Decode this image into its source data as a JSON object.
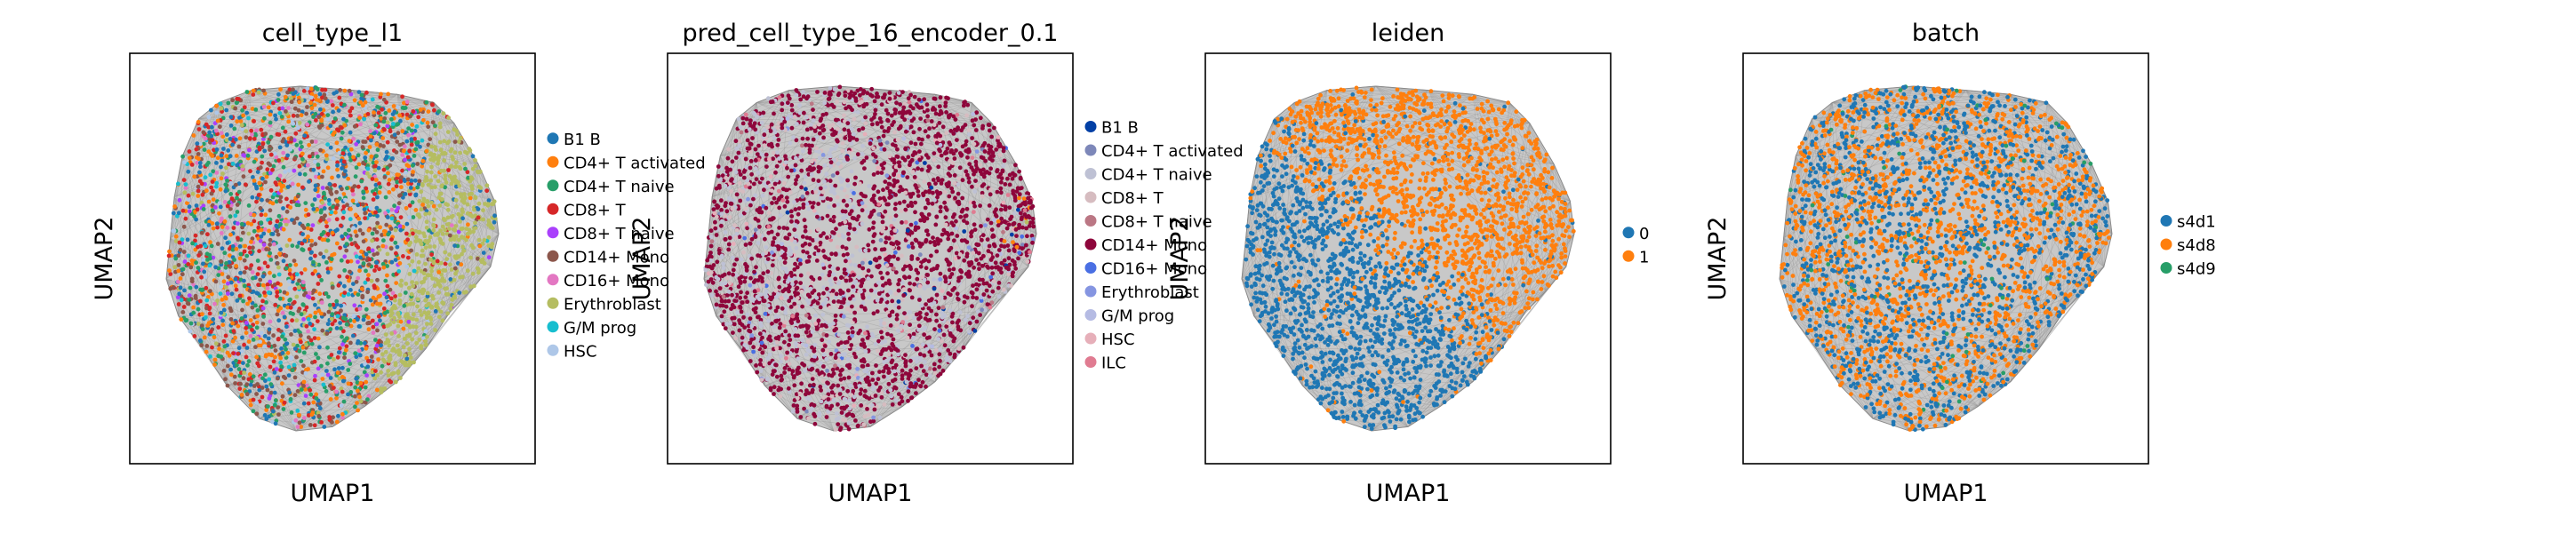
{
  "chart_data": [
    {
      "type": "scatter",
      "title": "cell_type_l1",
      "xlabel": "UMAP1",
      "ylabel": "UMAP2",
      "grid": false,
      "legend_placement": "right",
      "categories": [
        "B1 B",
        "CD4+ T activated",
        "CD4+ T naive",
        "CD8+ T",
        "CD8+ T naive",
        "CD14+ Mono",
        "CD16+ Mono",
        "Erythroblast",
        "G/M prog",
        "HSC"
      ],
      "colors": [
        "#1f77b4",
        "#ff7f0e",
        "#279e68",
        "#d62728",
        "#aa40fc",
        "#8c564b",
        "#e377c2",
        "#b5bd61",
        "#17becf",
        "#aec7e8"
      ],
      "dominant": [
        3,
        1,
        2,
        5,
        0
      ]
    },
    {
      "type": "scatter",
      "title": "pred_cell_type_16_encoder_0.1",
      "xlabel": "UMAP1",
      "ylabel": "UMAP2",
      "grid": false,
      "legend_placement": "right",
      "categories": [
        "B1 B",
        "CD4+ T activated",
        "CD4+ T naive",
        "CD8+ T",
        "CD8+ T naive",
        "CD14+ Mono",
        "CD16+ Mono",
        "Erythroblast",
        "G/M prog",
        "HSC",
        "ILC"
      ],
      "colors": [
        "#023fa5",
        "#7d87b9",
        "#bec1d4",
        "#d6bcc0",
        "#bb7784",
        "#8e063b",
        "#4a6fe3",
        "#8595e1",
        "#b5bbe3",
        "#e6afb9",
        "#e07b91"
      ],
      "dominant": [
        5,
        2,
        3,
        1
      ]
    },
    {
      "type": "scatter",
      "title": "leiden",
      "xlabel": "UMAP1",
      "ylabel": "UMAP2",
      "grid": false,
      "legend_placement": "right",
      "categories": [
        "0",
        "1"
      ],
      "colors": [
        "#1f77b4",
        "#ff7f0e"
      ]
    },
    {
      "type": "scatter",
      "title": "batch",
      "xlabel": "UMAP1",
      "ylabel": "UMAP2",
      "grid": false,
      "legend_placement": "right",
      "categories": [
        "s4d1",
        "s4d8",
        "s4d9"
      ],
      "colors": [
        "#1f77b4",
        "#ff7f0e",
        "#279e68"
      ]
    }
  ]
}
